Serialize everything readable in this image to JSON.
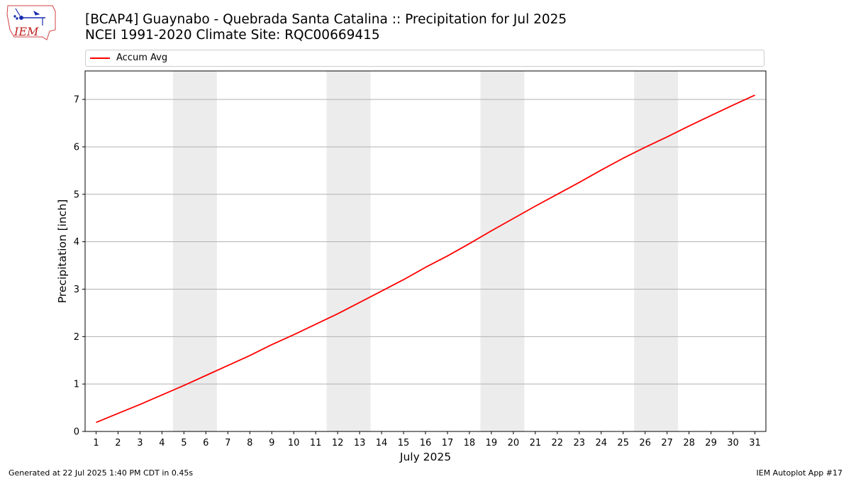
{
  "logo": {
    "text": "IEM"
  },
  "title": {
    "line1": "[BCAP4] Guaynabo - Quebrada Santa Catalina :: Precipitation for Jul 2025",
    "line2": "NCEI 1991-2020 Climate Site: RQC00669415"
  },
  "footer": {
    "left": "Generated at 22 Jul 2025 1:40 PM CDT in 0.45s",
    "right": "IEM Autoplot App #17"
  },
  "colors": {
    "series": "#ff0000",
    "weekend_band": "#ececec",
    "grid": "#b0b0b0"
  },
  "chart_data": {
    "type": "line",
    "xlabel": "July 2025",
    "ylabel": "Precipitation [inch]",
    "xlim": [
      0.5,
      31.5
    ],
    "ylim": [
      0,
      7.6
    ],
    "yticks": [
      0,
      1,
      2,
      3,
      4,
      5,
      6,
      7
    ],
    "x": [
      1,
      2,
      3,
      4,
      5,
      6,
      7,
      8,
      9,
      10,
      11,
      12,
      13,
      14,
      15,
      16,
      17,
      18,
      19,
      20,
      21,
      22,
      23,
      24,
      25,
      26,
      27,
      28,
      29,
      30,
      31
    ],
    "x_tick_labels": [
      "1",
      "2",
      "3",
      "4",
      "5",
      "6",
      "7",
      "8",
      "9",
      "10",
      "11",
      "12",
      "13",
      "14",
      "15",
      "16",
      "17",
      "18",
      "19",
      "20",
      "21",
      "22",
      "23",
      "24",
      "25",
      "26",
      "27",
      "28",
      "29",
      "30",
      "31"
    ],
    "shaded_day_ranges": [
      [
        5,
        6
      ],
      [
        12,
        13
      ],
      [
        19,
        20
      ],
      [
        26,
        27
      ]
    ],
    "grid": "y-major",
    "legend_position": "top",
    "series": [
      {
        "name": "Accum Avg",
        "values": [
          0.19,
          0.38,
          0.57,
          0.77,
          0.97,
          1.18,
          1.39,
          1.6,
          1.83,
          2.04,
          2.26,
          2.48,
          2.72,
          2.96,
          3.2,
          3.46,
          3.7,
          3.96,
          4.23,
          4.49,
          4.75,
          5.0,
          5.25,
          5.51,
          5.76,
          5.99,
          6.21,
          6.44,
          6.66,
          6.88,
          7.09
        ]
      }
    ]
  }
}
